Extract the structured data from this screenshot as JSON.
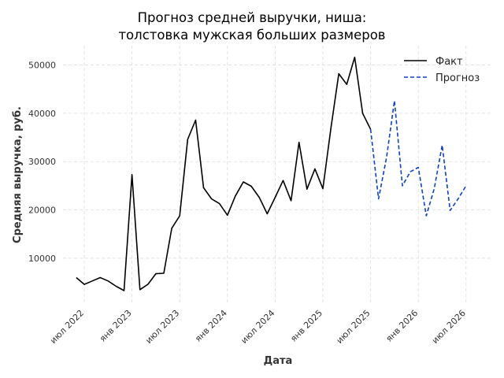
{
  "chart_data": {
    "type": "line",
    "title_lines": [
      "Прогноз средней выручки, ниша:",
      "толстовка мужская больших размеров"
    ],
    "xlabel": "Дата",
    "ylabel": "Средняя выручка, руб.",
    "x_tick_labels": [
      "июл 2022",
      "янв 2023",
      "июл 2023",
      "янв 2024",
      "июл 2024",
      "янв 2025",
      "июл 2025",
      "янв 2026",
      "июл 2026"
    ],
    "y_ticks": [
      10000,
      20000,
      30000,
      40000,
      50000
    ],
    "ylim": [
      700,
      54000
    ],
    "grid": true,
    "legend_position": "top-right",
    "colors": {
      "fact": "#000000",
      "forecast": "#0b3fd6",
      "grid": "#dddddd"
    },
    "series": [
      {
        "name": "Факт",
        "style": "solid",
        "points": [
          [
            "2022-06",
            6000
          ],
          [
            "2022-07",
            4600
          ],
          [
            "2022-08",
            5300
          ],
          [
            "2022-09",
            6000
          ],
          [
            "2022-10",
            5300
          ],
          [
            "2022-11",
            4200
          ],
          [
            "2022-12",
            3300
          ],
          [
            "2023-01",
            27300
          ],
          [
            "2023-02",
            3500
          ],
          [
            "2023-03",
            4600
          ],
          [
            "2023-04",
            6800
          ],
          [
            "2023-05",
            6900
          ],
          [
            "2023-06",
            16200
          ],
          [
            "2023-07",
            18800
          ],
          [
            "2023-08",
            34600
          ],
          [
            "2023-09",
            38600
          ],
          [
            "2023-10",
            24600
          ],
          [
            "2023-11",
            22300
          ],
          [
            "2023-12",
            21300
          ],
          [
            "2024-01",
            18900
          ],
          [
            "2024-02",
            22900
          ],
          [
            "2024-03",
            25800
          ],
          [
            "2024-04",
            24900
          ],
          [
            "2024-05",
            22600
          ],
          [
            "2024-06",
            19200
          ],
          [
            "2024-07",
            22600
          ],
          [
            "2024-08",
            26100
          ],
          [
            "2024-09",
            21900
          ],
          [
            "2024-10",
            34000
          ],
          [
            "2024-11",
            24300
          ],
          [
            "2024-12",
            28500
          ],
          [
            "2025-01",
            24400
          ],
          [
            "2025-02",
            36800
          ],
          [
            "2025-03",
            48200
          ],
          [
            "2025-04",
            46000
          ],
          [
            "2025-05",
            51600
          ],
          [
            "2025-06",
            40000
          ],
          [
            "2025-07",
            36700
          ]
        ]
      },
      {
        "name": "Прогноз",
        "style": "dashed",
        "points": [
          [
            "2025-07",
            36700
          ],
          [
            "2025-08",
            22300
          ],
          [
            "2025-09",
            30800
          ],
          [
            "2025-10",
            42600
          ],
          [
            "2025-11",
            25000
          ],
          [
            "2025-12",
            27900
          ],
          [
            "2026-01",
            28800
          ],
          [
            "2026-02",
            18800
          ],
          [
            "2026-03",
            24400
          ],
          [
            "2026-04",
            33400
          ],
          [
            "2026-05",
            19900
          ],
          [
            "2026-06",
            22300
          ],
          [
            "2026-07",
            25000
          ]
        ]
      }
    ]
  }
}
